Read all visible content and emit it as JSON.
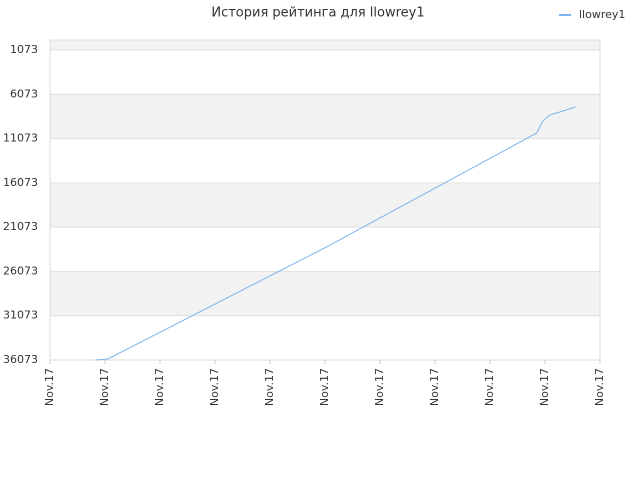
{
  "chart_data": {
    "type": "line",
    "title": "История рейтинга для llowrey1",
    "x": [
      0.82,
      1.05,
      5.0,
      8.85,
      8.96,
      9.09,
      9.27,
      9.55
    ],
    "series": [
      {
        "name": "llowrey1",
        "color": "#7cb5ec",
        "values": [
          36073,
          35960,
          23400,
          10444,
          9090,
          8400,
          8073,
          7509
        ]
      }
    ],
    "xlim": [
      0,
      10
    ],
    "xticks": [
      {
        "value": 0,
        "label": "Nov.17"
      },
      {
        "value": 1,
        "label": "Nov.17"
      },
      {
        "value": 2,
        "label": "Nov.17"
      },
      {
        "value": 3,
        "label": "Nov.17"
      },
      {
        "value": 4,
        "label": "Nov.17"
      },
      {
        "value": 5,
        "label": "Nov.17"
      },
      {
        "value": 6,
        "label": "Nov.17"
      },
      {
        "value": 7,
        "label": "Nov.17"
      },
      {
        "value": 8,
        "label": "Nov.17"
      },
      {
        "value": 9,
        "label": "Nov.17"
      },
      {
        "value": 10,
        "label": "Nov.17"
      }
    ],
    "ylim": [
      36073,
      -56
    ],
    "yticks": [
      1073,
      6073,
      11073,
      16073,
      21073,
      26073,
      31073,
      36073
    ],
    "grid": true,
    "legend": "top-right"
  }
}
